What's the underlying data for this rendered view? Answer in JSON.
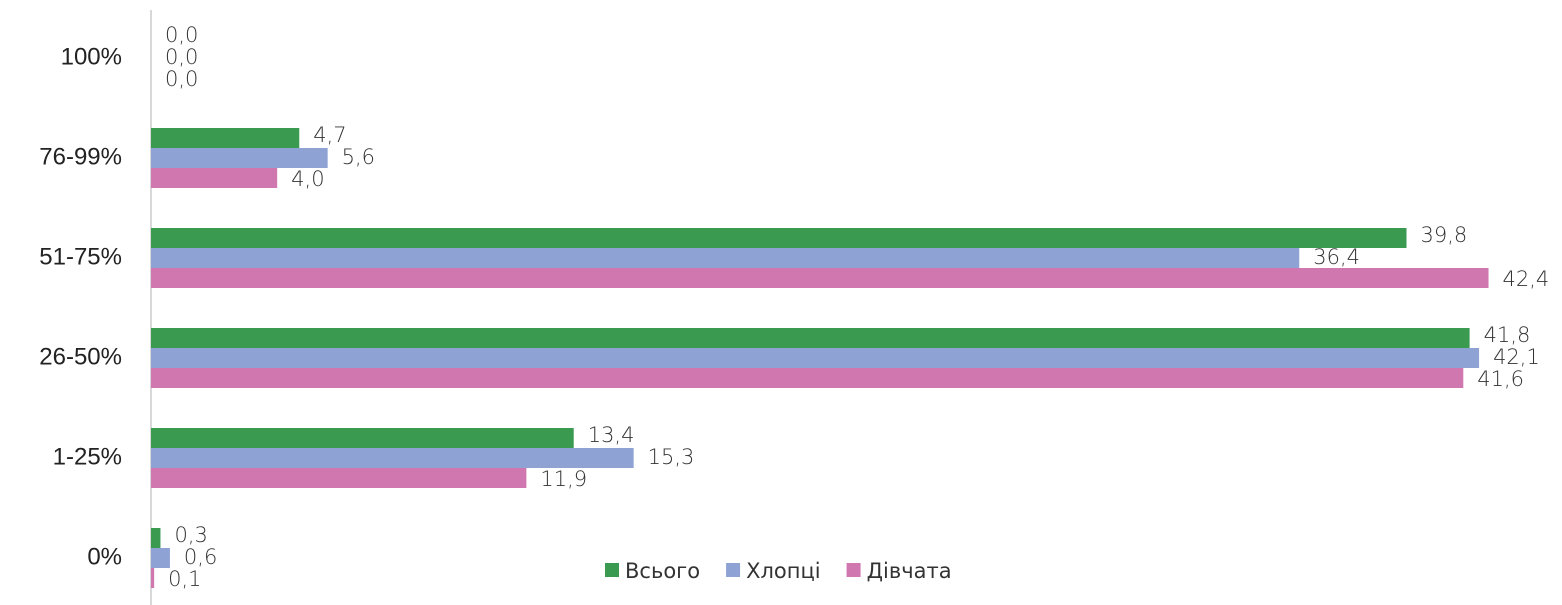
{
  "chart_data": {
    "type": "hbar",
    "categories": [
      "100%",
      "76-99%",
      "51-75%",
      "26-50%",
      "1-25%",
      "0%"
    ],
    "series": [
      {
        "name": "Всього",
        "color": "#3a9a50",
        "values": [
          0.0,
          4.7,
          39.8,
          41.8,
          13.4,
          0.3
        ],
        "value_labels": [
          "0,0",
          "4,7",
          "39,8",
          "41,8",
          "13,4",
          "0,3"
        ]
      },
      {
        "name": "Хлопці",
        "color": "#8fa2d4",
        "values": [
          0.0,
          5.6,
          36.4,
          42.1,
          15.3,
          0.6
        ],
        "value_labels": [
          "0,0",
          "5,6",
          "36,4",
          "42,1",
          "15,3",
          "0,6"
        ]
      },
      {
        "name": "Дівчата",
        "color": "#d077b0",
        "values": [
          0.0,
          4.0,
          42.4,
          41.6,
          11.9,
          0.1
        ],
        "value_labels": [
          "0,0",
          "4,0",
          "42,4",
          "41,6",
          "11,9",
          "0,1"
        ]
      }
    ],
    "xlim": [
      0,
      44
    ],
    "legend": "bottom"
  }
}
